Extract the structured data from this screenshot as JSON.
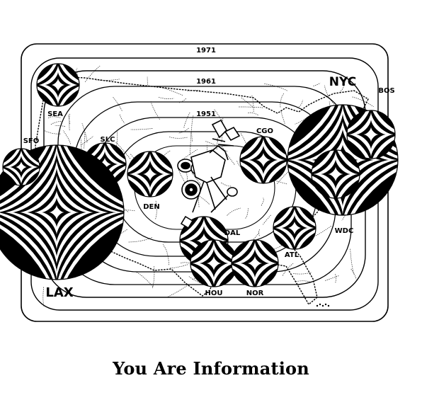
{
  "figure": {
    "caption": "You Are Information",
    "years": [
      "1971",
      "1961",
      "1951"
    ],
    "cities": [
      {
        "id": "sea",
        "label": "SEA"
      },
      {
        "id": "sfo",
        "label": "SFO"
      },
      {
        "id": "slc",
        "label": "SLC"
      },
      {
        "id": "lax",
        "label": "LAX"
      },
      {
        "id": "den",
        "label": "DEN"
      },
      {
        "id": "cgo",
        "label": "CGO"
      },
      {
        "id": "nyc",
        "label": "NYC"
      },
      {
        "id": "bos",
        "label": "BOS"
      },
      {
        "id": "wdc",
        "label": "WDC"
      },
      {
        "id": "dal",
        "label": "DAL"
      },
      {
        "id": "atl",
        "label": "ATL"
      },
      {
        "id": "hou",
        "label": "HOU"
      },
      {
        "id": "nor",
        "label": "NOR"
      }
    ],
    "colors": {
      "ink": "#000000",
      "paper": "#ffffff"
    }
  }
}
